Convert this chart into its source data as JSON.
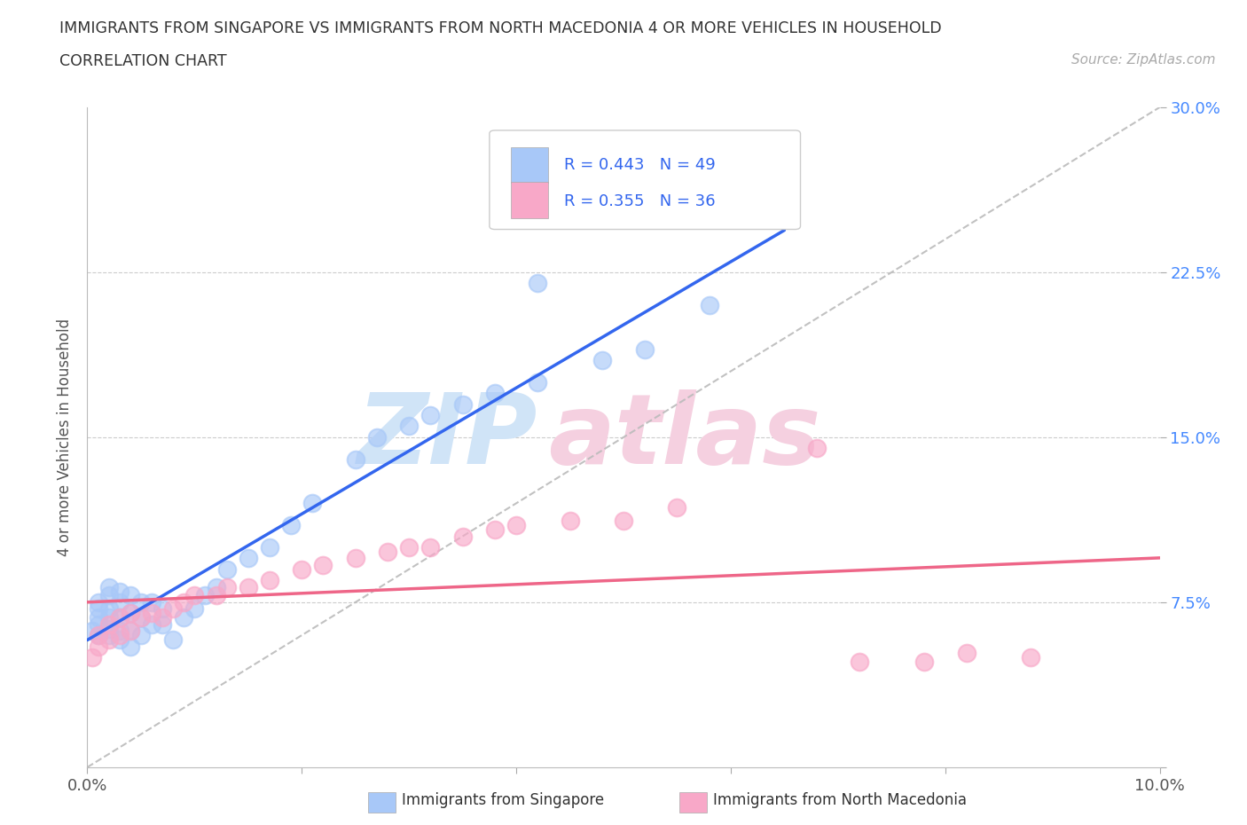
{
  "title_line1": "IMMIGRANTS FROM SINGAPORE VS IMMIGRANTS FROM NORTH MACEDONIA 4 OR MORE VEHICLES IN HOUSEHOLD",
  "title_line2": "CORRELATION CHART",
  "source": "Source: ZipAtlas.com",
  "ylabel": "4 or more Vehicles in Household",
  "xlim": [
    0.0,
    0.1
  ],
  "ylim": [
    0.0,
    0.3
  ],
  "singapore_R": 0.443,
  "singapore_N": 49,
  "macedonia_R": 0.355,
  "macedonia_N": 36,
  "singapore_color": "#a8c8f8",
  "macedonia_color": "#f8a8c8",
  "singapore_line_color": "#3366ee",
  "macedonia_line_color": "#ee6688",
  "diagonal_color": "#bbbbbb",
  "watermark_zip_color": "#d0e4f7",
  "watermark_atlas_color": "#f5d0e0",
  "singapore_x": [
    0.0005,
    0.001,
    0.001,
    0.001,
    0.001,
    0.001,
    0.002,
    0.002,
    0.002,
    0.002,
    0.002,
    0.002,
    0.003,
    0.003,
    0.003,
    0.003,
    0.003,
    0.004,
    0.004,
    0.004,
    0.004,
    0.005,
    0.005,
    0.005,
    0.006,
    0.006,
    0.007,
    0.007,
    0.008,
    0.009,
    0.01,
    0.011,
    0.012,
    0.013,
    0.015,
    0.017,
    0.019,
    0.021,
    0.025,
    0.027,
    0.03,
    0.032,
    0.035,
    0.038,
    0.042,
    0.048,
    0.052,
    0.058,
    0.042
  ],
  "singapore_y": [
    0.062,
    0.06,
    0.065,
    0.068,
    0.072,
    0.075,
    0.06,
    0.063,
    0.068,
    0.072,
    0.078,
    0.082,
    0.058,
    0.062,
    0.068,
    0.075,
    0.08,
    0.055,
    0.062,
    0.07,
    0.078,
    0.06,
    0.068,
    0.075,
    0.065,
    0.075,
    0.065,
    0.072,
    0.058,
    0.068,
    0.072,
    0.078,
    0.082,
    0.09,
    0.095,
    0.1,
    0.11,
    0.12,
    0.14,
    0.15,
    0.155,
    0.16,
    0.165,
    0.17,
    0.175,
    0.185,
    0.19,
    0.21,
    0.22
  ],
  "macedonia_x": [
    0.0005,
    0.001,
    0.001,
    0.002,
    0.002,
    0.003,
    0.003,
    0.004,
    0.004,
    0.005,
    0.006,
    0.007,
    0.008,
    0.009,
    0.01,
    0.012,
    0.013,
    0.015,
    0.017,
    0.02,
    0.022,
    0.025,
    0.028,
    0.03,
    0.032,
    0.035,
    0.038,
    0.04,
    0.045,
    0.05,
    0.055,
    0.068,
    0.072,
    0.078,
    0.082,
    0.088
  ],
  "macedonia_y": [
    0.05,
    0.055,
    0.06,
    0.058,
    0.065,
    0.06,
    0.068,
    0.062,
    0.07,
    0.068,
    0.07,
    0.068,
    0.072,
    0.075,
    0.078,
    0.078,
    0.082,
    0.082,
    0.085,
    0.09,
    0.092,
    0.095,
    0.098,
    0.1,
    0.1,
    0.105,
    0.108,
    0.11,
    0.112,
    0.112,
    0.118,
    0.145,
    0.048,
    0.048,
    0.052,
    0.05
  ]
}
